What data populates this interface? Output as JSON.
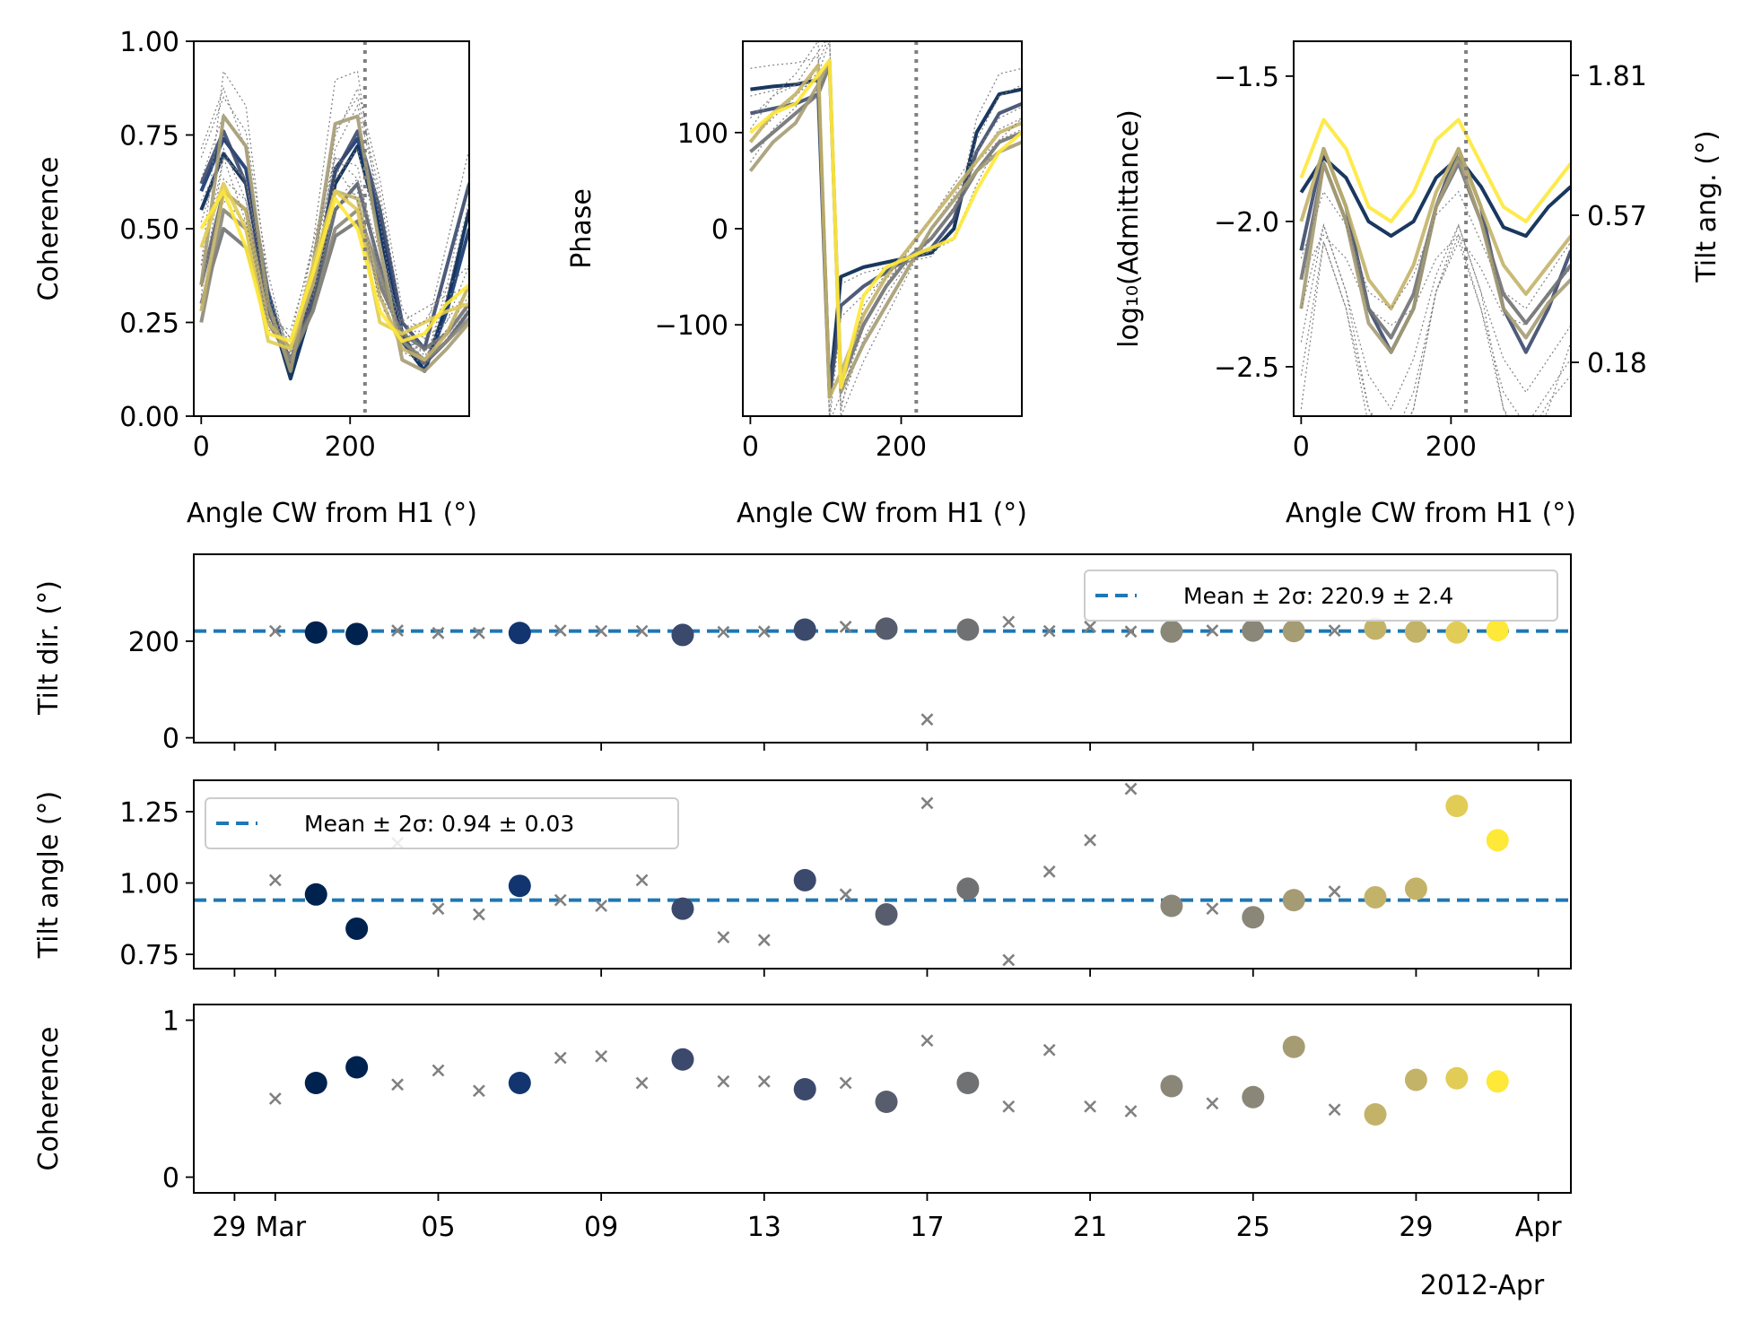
{
  "figure": {
    "panels": {
      "coh": {
        "ylabel": "Coherence",
        "xlabel": "Angle CW from H1 (°)",
        "yticks": [
          "0.00",
          "0.25",
          "0.50",
          "0.75",
          "1.00"
        ],
        "xticks": [
          "0",
          "200"
        ]
      },
      "phase": {
        "ylabel": "Phase",
        "xlabel": "Angle CW from H1 (°)",
        "yticks": [
          "−100",
          "0",
          "100"
        ],
        "xticks": [
          "0",
          "200"
        ]
      },
      "adm": {
        "ylabel": "log₁₀(Admittance)",
        "ylabel2": "Tilt ang. (°)",
        "xlabel": "Angle CW from H1 (°)",
        "yticks": [
          "−2.5",
          "−2.0",
          "−1.5"
        ],
        "y2ticks": [
          "0.18",
          "0.57",
          "1.81"
        ],
        "xticks": [
          "0",
          "200"
        ]
      },
      "tiltdir": {
        "ylabel": "Tilt dir. (°)",
        "yticks": [
          "0",
          "200"
        ],
        "legend": "Mean ± 2σ: 220.9 ± 2.4"
      },
      "tiltang": {
        "ylabel": "Tilt angle (°)",
        "yticks": [
          "0.75",
          "1.00",
          "1.25"
        ],
        "legend": "Mean ± 2σ: 0.94 ± 0.03"
      },
      "cohts": {
        "ylabel": "Coherence",
        "yticks": [
          "0",
          "1"
        ],
        "xticks": [
          "29",
          "Mar",
          "05",
          "09",
          "13",
          "17",
          "21",
          "25",
          "29",
          "Apr"
        ],
        "xsub": "2012-Apr"
      }
    }
  },
  "chart_data": [
    {
      "type": "line",
      "title": "",
      "xlabel": "Angle CW from H1 (°)",
      "ylabel": "Coherence",
      "xlim": [
        -10,
        360
      ],
      "ylim": [
        0,
        1
      ],
      "vline_x": 220,
      "series_note_values": "each series sampled at x = 0,30,...,360",
      "x": [
        0,
        30,
        60,
        90,
        120,
        150,
        180,
        210,
        240,
        270,
        300,
        330,
        360
      ],
      "series": [
        {
          "color": "#00224e",
          "values": [
            0.55,
            0.7,
            0.62,
            0.3,
            0.1,
            0.3,
            0.62,
            0.72,
            0.5,
            0.2,
            0.12,
            0.3,
            0.55
          ]
        },
        {
          "color": "#123570",
          "values": [
            0.6,
            0.74,
            0.66,
            0.33,
            0.12,
            0.33,
            0.66,
            0.74,
            0.52,
            0.22,
            0.12,
            0.28,
            0.5
          ]
        },
        {
          "color": "#3b496c",
          "values": [
            0.62,
            0.76,
            0.62,
            0.3,
            0.14,
            0.34,
            0.65,
            0.76,
            0.55,
            0.25,
            0.18,
            0.4,
            0.62
          ]
        },
        {
          "color": "#575d6d",
          "values": [
            0.35,
            0.6,
            0.55,
            0.28,
            0.15,
            0.3,
            0.55,
            0.62,
            0.4,
            0.2,
            0.14,
            0.2,
            0.28
          ]
        },
        {
          "color": "#707173",
          "values": [
            0.3,
            0.5,
            0.45,
            0.25,
            0.18,
            0.28,
            0.48,
            0.52,
            0.35,
            0.22,
            0.18,
            0.22,
            0.3
          ]
        },
        {
          "color": "#8a8779",
          "values": [
            0.25,
            0.55,
            0.5,
            0.25,
            0.15,
            0.28,
            0.5,
            0.55,
            0.38,
            0.2,
            0.15,
            0.2,
            0.26
          ]
        },
        {
          "color": "#a59c74",
          "values": [
            0.35,
            0.8,
            0.72,
            0.3,
            0.12,
            0.4,
            0.78,
            0.8,
            0.45,
            0.15,
            0.12,
            0.18,
            0.25
          ]
        },
        {
          "color": "#c3b369",
          "values": [
            0.28,
            0.6,
            0.55,
            0.25,
            0.18,
            0.35,
            0.6,
            0.58,
            0.32,
            0.18,
            0.15,
            0.22,
            0.35
          ]
        },
        {
          "color": "#e1cc55",
          "values": [
            0.45,
            0.62,
            0.5,
            0.2,
            0.18,
            0.4,
            0.6,
            0.55,
            0.25,
            0.22,
            0.25,
            0.28,
            0.3
          ]
        },
        {
          "color": "#fee838",
          "values": [
            0.5,
            0.6,
            0.45,
            0.22,
            0.2,
            0.38,
            0.58,
            0.5,
            0.28,
            0.2,
            0.22,
            0.3,
            0.35
          ]
        }
      ]
    },
    {
      "type": "line",
      "xlabel": "Angle CW from H1 (°)",
      "ylabel": "Phase",
      "xlim": [
        -10,
        360
      ],
      "ylim": [
        -195,
        195
      ],
      "vline_x": 220,
      "x": [
        0,
        30,
        60,
        90,
        105,
        120,
        150,
        180,
        210,
        240,
        270,
        300,
        330,
        360
      ],
      "series": [
        {
          "color": "#00224e",
          "values": [
            145,
            148,
            150,
            155,
            -170,
            -50,
            -40,
            -35,
            -30,
            -25,
            0,
            100,
            140,
            145
          ]
        },
        {
          "color": "#3b496c",
          "values": [
            120,
            125,
            130,
            140,
            -175,
            -80,
            -60,
            -45,
            -30,
            -20,
            10,
            80,
            120,
            130
          ]
        },
        {
          "color": "#707173",
          "values": [
            80,
            100,
            120,
            140,
            170,
            -160,
            -100,
            -60,
            -30,
            -10,
            20,
            60,
            90,
            100
          ]
        },
        {
          "color": "#a59c74",
          "values": [
            60,
            90,
            110,
            150,
            175,
            -170,
            -120,
            -80,
            -40,
            0,
            30,
            60,
            80,
            90
          ]
        },
        {
          "color": "#c3b369",
          "values": [
            90,
            120,
            140,
            170,
            -175,
            -150,
            -90,
            -50,
            -20,
            10,
            40,
            70,
            100,
            110
          ]
        },
        {
          "color": "#fee838",
          "values": [
            100,
            120,
            130,
            160,
            175,
            -165,
            -70,
            -40,
            -30,
            -20,
            -10,
            40,
            80,
            100
          ]
        }
      ]
    },
    {
      "type": "line",
      "xlabel": "Angle CW from H1 (°)",
      "ylabel": "log₁₀(Admittance)",
      "ylabel_right": "Tilt ang. (°)",
      "xlim": [
        -10,
        360
      ],
      "ylim": [
        -2.67,
        -1.38
      ],
      "vline_x": 220,
      "x": [
        0,
        30,
        60,
        90,
        120,
        150,
        180,
        210,
        240,
        270,
        300,
        330,
        360
      ],
      "series": [
        {
          "color": "#00224e",
          "values": [
            -1.9,
            -1.78,
            -1.85,
            -2.0,
            -2.05,
            -2.0,
            -1.85,
            -1.78,
            -1.88,
            -2.02,
            -2.05,
            -1.95,
            -1.88
          ]
        },
        {
          "color": "#3b496c",
          "values": [
            -2.1,
            -1.75,
            -1.95,
            -2.3,
            -2.45,
            -2.3,
            -1.95,
            -1.75,
            -1.95,
            -2.3,
            -2.45,
            -2.3,
            -2.1
          ]
        },
        {
          "color": "#707173",
          "values": [
            -2.2,
            -1.8,
            -2.0,
            -2.3,
            -2.4,
            -2.25,
            -1.95,
            -1.8,
            -2.0,
            -2.25,
            -2.35,
            -2.25,
            -2.15
          ]
        },
        {
          "color": "#a59c74",
          "values": [
            -2.3,
            -1.8,
            -2.0,
            -2.35,
            -2.45,
            -2.3,
            -1.95,
            -1.78,
            -2.0,
            -2.3,
            -2.4,
            -2.28,
            -2.2
          ]
        },
        {
          "color": "#c3b369",
          "values": [
            -2.0,
            -1.75,
            -1.95,
            -2.2,
            -2.3,
            -2.15,
            -1.9,
            -1.75,
            -1.95,
            -2.15,
            -2.25,
            -2.15,
            -2.05
          ]
        },
        {
          "color": "#fee838",
          "values": [
            -1.85,
            -1.65,
            -1.75,
            -1.95,
            -2.0,
            -1.9,
            -1.72,
            -1.65,
            -1.8,
            -1.95,
            -2.0,
            -1.9,
            -1.8
          ]
        }
      ],
      "right_ticks": [
        "0.18",
        "0.57",
        "1.81"
      ]
    },
    {
      "type": "scatter",
      "ylabel": "Tilt dir. (°)",
      "ylim": [
        -10,
        380
      ],
      "x_days_label": "dates 2012-02-29 to 2012-04-01",
      "mean_line": 220.9,
      "legend": "Mean ± 2σ: 220.9 ± 2.4",
      "good": [
        {
          "date": "2012-03-02",
          "value": 218
        },
        {
          "date": "2012-03-03",
          "value": 215
        },
        {
          "date": "2012-03-07",
          "value": 217
        },
        {
          "date": "2012-03-11",
          "value": 213
        },
        {
          "date": "2012-03-14",
          "value": 224
        },
        {
          "date": "2012-03-16",
          "value": 226
        },
        {
          "date": "2012-03-18",
          "value": 224
        },
        {
          "date": "2012-03-23",
          "value": 220
        },
        {
          "date": "2012-03-25",
          "value": 222
        },
        {
          "date": "2012-03-26",
          "value": 221
        },
        {
          "date": "2012-03-28",
          "value": 226
        },
        {
          "date": "2012-03-29",
          "value": 220
        },
        {
          "date": "2012-03-30",
          "value": 218
        },
        {
          "date": "2012-03-31",
          "value": 223
        }
      ],
      "rejected": [
        {
          "date": "2012-03-01",
          "value": 221
        },
        {
          "date": "2012-03-04",
          "value": 222
        },
        {
          "date": "2012-03-05",
          "value": 217
        },
        {
          "date": "2012-03-06",
          "value": 217
        },
        {
          "date": "2012-03-08",
          "value": 222
        },
        {
          "date": "2012-03-09",
          "value": 221
        },
        {
          "date": "2012-03-10",
          "value": 221
        },
        {
          "date": "2012-03-12",
          "value": 219
        },
        {
          "date": "2012-03-13",
          "value": 220
        },
        {
          "date": "2012-03-15",
          "value": 230
        },
        {
          "date": "2012-03-17",
          "value": 38
        },
        {
          "date": "2012-03-19",
          "value": 240
        },
        {
          "date": "2012-03-20",
          "value": 221
        },
        {
          "date": "2012-03-21",
          "value": 230
        },
        {
          "date": "2012-03-22",
          "value": 220
        },
        {
          "date": "2012-03-24",
          "value": 222
        },
        {
          "date": "2012-03-27",
          "value": 222
        }
      ]
    },
    {
      "type": "scatter",
      "ylabel": "Tilt angle (°)",
      "ylim": [
        0.7,
        1.36
      ],
      "mean_line": 0.94,
      "legend": "Mean ± 2σ: 0.94 ± 0.03",
      "good": [
        {
          "date": "2012-03-02",
          "value": 0.96
        },
        {
          "date": "2012-03-03",
          "value": 0.84
        },
        {
          "date": "2012-03-07",
          "value": 0.99
        },
        {
          "date": "2012-03-11",
          "value": 0.91
        },
        {
          "date": "2012-03-14",
          "value": 1.01
        },
        {
          "date": "2012-03-16",
          "value": 0.89
        },
        {
          "date": "2012-03-18",
          "value": 0.98
        },
        {
          "date": "2012-03-23",
          "value": 0.92
        },
        {
          "date": "2012-03-25",
          "value": 0.88
        },
        {
          "date": "2012-03-26",
          "value": 0.94
        },
        {
          "date": "2012-03-28",
          "value": 0.95
        },
        {
          "date": "2012-03-29",
          "value": 0.98
        },
        {
          "date": "2012-03-30",
          "value": 1.27
        },
        {
          "date": "2012-03-31",
          "value": 1.15
        }
      ],
      "rejected": [
        {
          "date": "2012-03-01",
          "value": 1.01
        },
        {
          "date": "2012-03-04",
          "value": 1.14
        },
        {
          "date": "2012-03-05",
          "value": 0.91
        },
        {
          "date": "2012-03-06",
          "value": 0.89
        },
        {
          "date": "2012-03-08",
          "value": 0.94
        },
        {
          "date": "2012-03-09",
          "value": 0.92
        },
        {
          "date": "2012-03-10",
          "value": 1.01
        },
        {
          "date": "2012-03-12",
          "value": 0.81
        },
        {
          "date": "2012-03-13",
          "value": 0.8
        },
        {
          "date": "2012-03-15",
          "value": 0.96
        },
        {
          "date": "2012-03-17",
          "value": 1.28
        },
        {
          "date": "2012-03-19",
          "value": 0.73
        },
        {
          "date": "2012-03-20",
          "value": 1.04
        },
        {
          "date": "2012-03-21",
          "value": 1.15
        },
        {
          "date": "2012-03-22",
          "value": 1.33
        },
        {
          "date": "2012-03-24",
          "value": 0.91
        },
        {
          "date": "2012-03-27",
          "value": 0.97
        }
      ]
    },
    {
      "type": "scatter",
      "ylabel": "Coherence",
      "ylim": [
        -0.1,
        1.1
      ],
      "good": [
        {
          "date": "2012-03-02",
          "value": 0.6
        },
        {
          "date": "2012-03-03",
          "value": 0.7
        },
        {
          "date": "2012-03-07",
          "value": 0.6
        },
        {
          "date": "2012-03-11",
          "value": 0.75
        },
        {
          "date": "2012-03-14",
          "value": 0.56
        },
        {
          "date": "2012-03-16",
          "value": 0.48
        },
        {
          "date": "2012-03-18",
          "value": 0.6
        },
        {
          "date": "2012-03-23",
          "value": 0.58
        },
        {
          "date": "2012-03-25",
          "value": 0.51
        },
        {
          "date": "2012-03-26",
          "value": 0.83
        },
        {
          "date": "2012-03-28",
          "value": 0.4
        },
        {
          "date": "2012-03-29",
          "value": 0.62
        },
        {
          "date": "2012-03-30",
          "value": 0.63
        },
        {
          "date": "2012-03-31",
          "value": 0.61
        }
      ],
      "rejected": [
        {
          "date": "2012-03-01",
          "value": 0.5
        },
        {
          "date": "2012-03-04",
          "value": 0.59
        },
        {
          "date": "2012-03-05",
          "value": 0.68
        },
        {
          "date": "2012-03-06",
          "value": 0.55
        },
        {
          "date": "2012-03-08",
          "value": 0.76
        },
        {
          "date": "2012-03-09",
          "value": 0.77
        },
        {
          "date": "2012-03-10",
          "value": 0.6
        },
        {
          "date": "2012-03-12",
          "value": 0.61
        },
        {
          "date": "2012-03-13",
          "value": 0.61
        },
        {
          "date": "2012-03-15",
          "value": 0.6
        },
        {
          "date": "2012-03-17",
          "value": 0.87
        },
        {
          "date": "2012-03-19",
          "value": 0.45
        },
        {
          "date": "2012-03-20",
          "value": 0.81
        },
        {
          "date": "2012-03-21",
          "value": 0.45
        },
        {
          "date": "2012-03-22",
          "value": 0.42
        },
        {
          "date": "2012-03-24",
          "value": 0.47
        },
        {
          "date": "2012-03-27",
          "value": 0.43
        }
      ],
      "xticks": [
        "29",
        "Mar",
        "05",
        "09",
        "13",
        "17",
        "21",
        "25",
        "29",
        "Apr"
      ],
      "x_sublabel": "2012-Apr"
    }
  ],
  "colors": {
    "mean_line": "#1f77b4",
    "rejected_marker": "#808080",
    "vline": "#808080",
    "cividis": [
      "#00224e",
      "#123570",
      "#3b496c",
      "#575d6d",
      "#707173",
      "#8a8779",
      "#a59c74",
      "#c3b369",
      "#e1cc55",
      "#fee838"
    ]
  }
}
